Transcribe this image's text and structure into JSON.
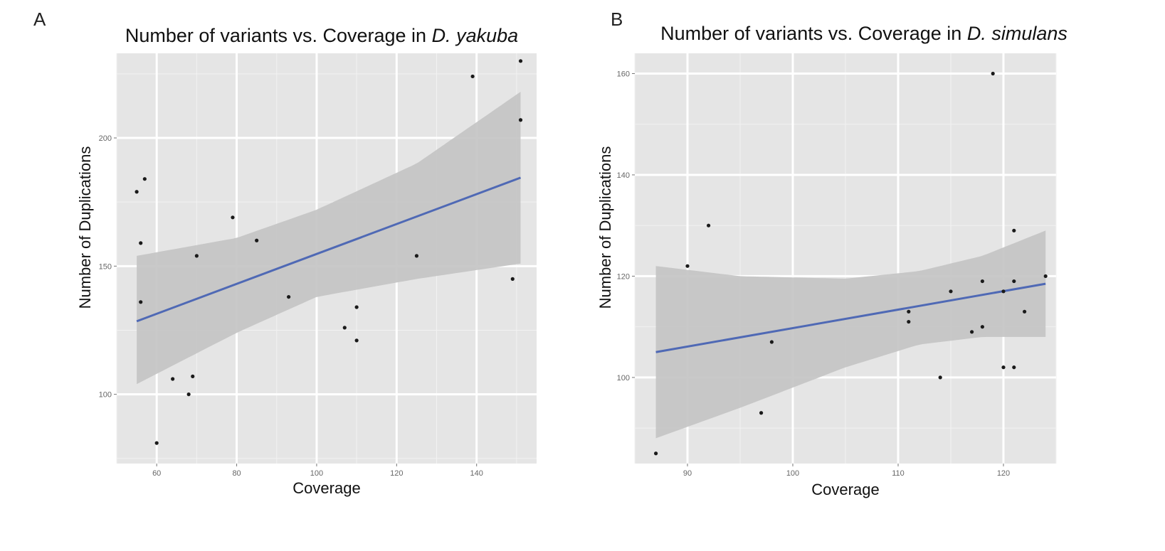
{
  "chart_data": [
    {
      "type": "scatter",
      "panel_label": "A",
      "title": "Number of variants vs. Coverage in D. yakuba",
      "title_plain": "Number of variants vs. Coverage in",
      "title_italic": "D. yakuba",
      "xlabel": "Coverage",
      "ylabel": "Number of Duplications",
      "xlim": [
        50,
        155
      ],
      "ylim": [
        73,
        233
      ],
      "x_ticks": [
        60,
        80,
        100,
        120,
        140
      ],
      "y_ticks": [
        100,
        150,
        200
      ],
      "grid": true,
      "points": [
        {
          "x": 55,
          "y": 179
        },
        {
          "x": 56,
          "y": 159
        },
        {
          "x": 56,
          "y": 136
        },
        {
          "x": 57,
          "y": 184
        },
        {
          "x": 60,
          "y": 81
        },
        {
          "x": 64,
          "y": 106
        },
        {
          "x": 68,
          "y": 100
        },
        {
          "x": 69,
          "y": 107
        },
        {
          "x": 70,
          "y": 154
        },
        {
          "x": 79,
          "y": 169
        },
        {
          "x": 85,
          "y": 160
        },
        {
          "x": 93,
          "y": 138
        },
        {
          "x": 107,
          "y": 126
        },
        {
          "x": 110,
          "y": 134
        },
        {
          "x": 110,
          "y": 121
        },
        {
          "x": 125,
          "y": 154
        },
        {
          "x": 139,
          "y": 224
        },
        {
          "x": 149,
          "y": 145
        },
        {
          "x": 151,
          "y": 230
        },
        {
          "x": 151,
          "y": 207
        }
      ],
      "fit_line": {
        "x": [
          55,
          151
        ],
        "y": [
          128.5,
          184.5
        ]
      },
      "confidence_band": {
        "x": [
          55,
          80,
          100,
          125,
          151
        ],
        "upper": [
          154,
          161,
          172,
          190,
          218
        ],
        "lower": [
          104,
          124,
          138,
          145,
          151
        ]
      },
      "colors": {
        "panel_bg": "#e5e5e5",
        "grid": "#ffffff",
        "fit_line": "#4f69b5",
        "band": "#c3c3c3",
        "points": "#1a1a1a"
      }
    },
    {
      "type": "scatter",
      "panel_label": "B",
      "title": "Number of variants vs. Coverage in D. simulans",
      "title_plain": "Number of variants vs. Coverage in",
      "title_italic": "D. simulans",
      "xlabel": "Coverage",
      "ylabel": "Number of Duplications",
      "xlim": [
        85,
        125
      ],
      "ylim": [
        83,
        164
      ],
      "x_ticks": [
        90,
        100,
        110,
        120
      ],
      "y_ticks": [
        100,
        120,
        140,
        160
      ],
      "grid": true,
      "points": [
        {
          "x": 87,
          "y": 85
        },
        {
          "x": 90,
          "y": 122
        },
        {
          "x": 92,
          "y": 130
        },
        {
          "x": 97,
          "y": 93
        },
        {
          "x": 98,
          "y": 107
        },
        {
          "x": 111,
          "y": 113
        },
        {
          "x": 111,
          "y": 111
        },
        {
          "x": 114,
          "y": 100
        },
        {
          "x": 115,
          "y": 117
        },
        {
          "x": 117,
          "y": 109
        },
        {
          "x": 118,
          "y": 119
        },
        {
          "x": 118,
          "y": 110
        },
        {
          "x": 119,
          "y": 160
        },
        {
          "x": 120,
          "y": 117
        },
        {
          "x": 120,
          "y": 102
        },
        {
          "x": 121,
          "y": 129
        },
        {
          "x": 121,
          "y": 119
        },
        {
          "x": 121,
          "y": 102
        },
        {
          "x": 122,
          "y": 113
        },
        {
          "x": 124,
          "y": 120
        }
      ],
      "fit_line": {
        "x": [
          87,
          124
        ],
        "y": [
          105,
          118.5
        ]
      },
      "confidence_band": {
        "x": [
          87,
          95,
          105,
          112,
          118,
          124
        ],
        "upper": [
          122,
          120,
          119.5,
          121,
          124,
          129
        ],
        "lower": [
          88,
          94,
          102,
          106.5,
          108,
          108
        ]
      },
      "colors": {
        "panel_bg": "#e5e5e5",
        "grid": "#ffffff",
        "fit_line": "#4f69b5",
        "band": "#c3c3c3",
        "points": "#1a1a1a"
      }
    }
  ]
}
